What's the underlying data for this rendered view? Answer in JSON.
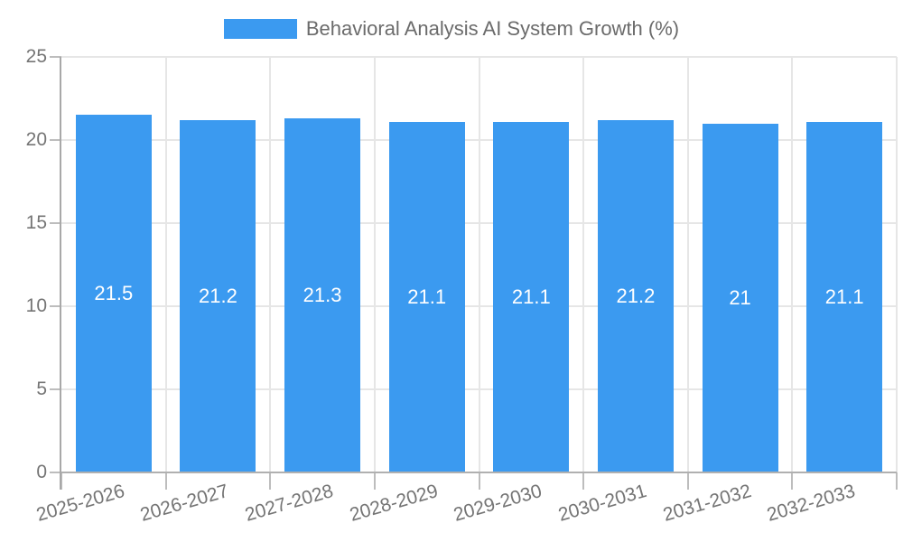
{
  "chart_data": {
    "type": "bar",
    "legend": "Behavioral Analysis AI System Growth (%)",
    "legend_position": "top",
    "categories": [
      "2025-2026",
      "2026-2027",
      "2027-2028",
      "2028-2029",
      "2029-2030",
      "2030-2031",
      "2031-2032",
      "2032-2033"
    ],
    "values": [
      21.5,
      21.2,
      21.3,
      21.1,
      21.1,
      21.2,
      21,
      21.1
    ],
    "bar_labels": [
      "21.5",
      "21.2",
      "21.3",
      "21.1",
      "21.1",
      "21.2",
      "21",
      "21.1"
    ],
    "y_ticks": [
      0,
      5,
      10,
      15,
      20,
      25
    ],
    "y_tick_labels": [
      "0",
      "5",
      "10",
      "15",
      "20",
      "25"
    ],
    "ylim": [
      0,
      25
    ],
    "xlabel": "",
    "ylabel": "",
    "grid": true,
    "colors": {
      "bar": "#3b9af0",
      "grid": "#e6e6e6",
      "axis": "#a8a8a8",
      "baseline": "#b0b0b0",
      "tick": "#bdbdbd",
      "tick_label": "#757575",
      "legend_text": "#6b6b6b",
      "bar_label": "#ffffff",
      "background": "#ffffff"
    }
  }
}
